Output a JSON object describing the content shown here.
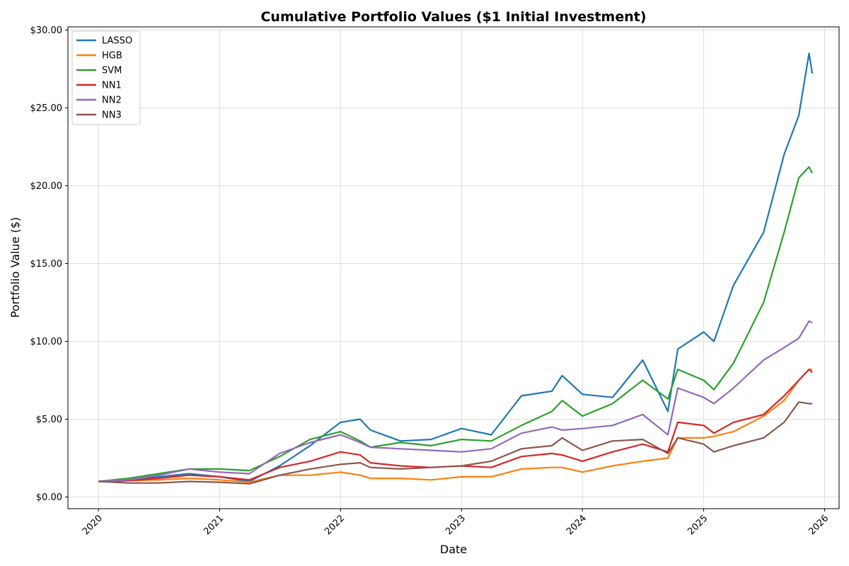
{
  "chart_data": {
    "type": "line",
    "title": "Cumulative Portfolio Values ($1 Initial Investment)",
    "xlabel": "Date",
    "ylabel": "Portfolio Value ($)",
    "x_ticks": [
      "2020",
      "2021",
      "2022",
      "2023",
      "2024",
      "2025",
      "2026"
    ],
    "y_ticks": [
      "$0.00",
      "$5.00",
      "$10.00",
      "$15.00",
      "$20.00",
      "$25.00",
      "$30.00"
    ],
    "ylim": [
      0,
      30
    ],
    "xlim": [
      "2020-01-01",
      "2026-01-01"
    ],
    "grid": true,
    "legend_position": "top-left",
    "x": [
      "2020-01-01",
      "2020-04-01",
      "2020-07-01",
      "2020-10-01",
      "2021-01-01",
      "2021-04-01",
      "2021-07-01",
      "2021-10-01",
      "2022-01-01",
      "2022-03-01",
      "2022-04-01",
      "2022-07-01",
      "2022-10-01",
      "2023-01-01",
      "2023-04-01",
      "2023-07-01",
      "2023-10-01",
      "2023-11-01",
      "2024-01-01",
      "2024-04-01",
      "2024-07-01",
      "2024-09-15",
      "2024-10-15",
      "2025-01-01",
      "2025-02-01",
      "2025-04-01",
      "2025-07-01",
      "2025-09-01",
      "2025-10-15",
      "2025-11-15",
      "2025-11-25"
    ],
    "series": [
      {
        "name": "LASSO",
        "color": "#1f77b4",
        "values": [
          1.0,
          1.1,
          1.3,
          1.5,
          1.3,
          1.0,
          2.0,
          3.3,
          4.8,
          5.0,
          4.3,
          3.6,
          3.7,
          4.4,
          4.0,
          6.5,
          6.8,
          7.8,
          6.6,
          6.4,
          8.8,
          5.5,
          9.5,
          10.6,
          10.0,
          13.6,
          17.0,
          22.0,
          24.5,
          28.5,
          27.2
        ]
      },
      {
        "name": "HGB",
        "color": "#ff7f0e",
        "values": [
          1.0,
          1.05,
          1.1,
          1.2,
          1.1,
          0.95,
          1.4,
          1.4,
          1.6,
          1.4,
          1.2,
          1.2,
          1.1,
          1.3,
          1.3,
          1.8,
          1.9,
          1.9,
          1.6,
          2.0,
          2.3,
          2.5,
          3.8,
          3.8,
          3.9,
          4.2,
          5.2,
          6.2,
          7.5,
          8.2,
          8.2
        ]
      },
      {
        "name": "SVM",
        "color": "#2ca02c",
        "values": [
          1.0,
          1.2,
          1.5,
          1.8,
          1.8,
          1.7,
          2.6,
          3.7,
          4.2,
          3.6,
          3.2,
          3.5,
          3.3,
          3.7,
          3.6,
          4.6,
          5.5,
          6.2,
          5.2,
          6.0,
          7.5,
          6.3,
          8.2,
          7.5,
          6.9,
          8.6,
          12.5,
          17.0,
          20.5,
          21.2,
          20.8
        ]
      },
      {
        "name": "NN1",
        "color": "#d62728",
        "values": [
          1.0,
          1.05,
          1.2,
          1.4,
          1.3,
          1.1,
          1.9,
          2.3,
          2.9,
          2.7,
          2.2,
          2.0,
          1.9,
          2.0,
          1.9,
          2.6,
          2.8,
          2.7,
          2.3,
          2.9,
          3.4,
          2.9,
          4.8,
          4.6,
          4.1,
          4.8,
          5.3,
          6.5,
          7.5,
          8.2,
          8.0
        ]
      },
      {
        "name": "NN2",
        "color": "#9467bd",
        "values": [
          1.0,
          1.1,
          1.4,
          1.8,
          1.6,
          1.5,
          2.8,
          3.5,
          4.0,
          3.5,
          3.2,
          3.1,
          3.0,
          2.9,
          3.1,
          4.1,
          4.5,
          4.3,
          4.4,
          4.6,
          5.3,
          4.0,
          7.0,
          6.4,
          6.0,
          7.0,
          8.8,
          9.6,
          10.2,
          11.3,
          11.2
        ]
      },
      {
        "name": "NN3",
        "color": "#8c564b",
        "values": [
          1.0,
          0.9,
          0.9,
          1.0,
          0.95,
          0.85,
          1.4,
          1.8,
          2.1,
          2.2,
          1.9,
          1.8,
          1.9,
          2.0,
          2.3,
          3.1,
          3.3,
          3.8,
          3.0,
          3.6,
          3.7,
          2.8,
          3.8,
          3.4,
          2.9,
          3.3,
          3.8,
          4.8,
          6.1,
          6.0,
          6.0
        ]
      }
    ]
  }
}
